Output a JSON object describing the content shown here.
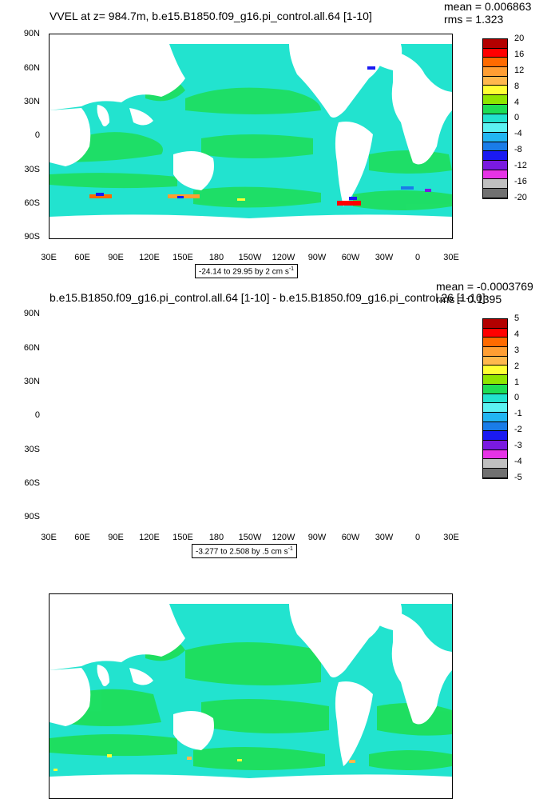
{
  "panels": [
    {
      "title": "VVEL at z= 984.7m, b.e15.B1850.f09_g16.pi_control.all.64 [1-10]",
      "stats": {
        "mean": "mean = 0.006863",
        "rms": "rms = 1.323"
      },
      "range_note": "-24.14 to 29.95 by 2 cm s",
      "range_unit_exp": "-1",
      "colorbar_labels": [
        "20",
        "16",
        "12",
        "8",
        "4",
        "0",
        "-4",
        "-8",
        "-12",
        "-16",
        "-20"
      ],
      "background_color": "#22e3cf"
    },
    {
      "title": "b.e15.B1850.f09_g16.pi_control.all.64 [1-10] - b.e15.B1850.f09_g16.pi_control.26 [1-10]",
      "stats": {
        "mean": "mean = -0.0003769",
        "rms": "rms = 0.1395"
      },
      "range_note": "-3.277 to 2.508 by .5 cm s",
      "range_unit_exp": "-1",
      "colorbar_labels": [
        "5",
        "4",
        "3",
        "2",
        "1",
        "0",
        "-1",
        "-2",
        "-3",
        "-4",
        "-5"
      ],
      "background_color": "#22e3cf"
    }
  ],
  "chart_data": [
    {
      "type": "heatmap",
      "title": "VVEL at z= 984.7m, b.e15.B1850.f09_g16.pi_control.all.64 [1-10]",
      "xlabel": "",
      "ylabel": "",
      "x_ticks": [
        "30E",
        "60E",
        "90E",
        "120E",
        "150E",
        "180",
        "150W",
        "120W",
        "90W",
        "60W",
        "30W",
        "0",
        "30E"
      ],
      "y_ticks": [
        "90N",
        "60N",
        "30N",
        "0",
        "30S",
        "60S",
        "90S"
      ],
      "x_range": [
        30,
        390
      ],
      "y_range": [
        -90,
        90
      ],
      "mean": 0.006863,
      "rms": 1.323,
      "data_min": -24.14,
      "data_max": 29.95,
      "contour_interval": 2,
      "units": "cm s-1",
      "colorbar_range": [
        -20,
        20
      ],
      "colorbar_levels": [
        -20,
        -16,
        -12,
        -8,
        -4,
        0,
        4,
        8,
        12,
        16,
        20
      ],
      "colorbar_colors": [
        "#b30000",
        "#ff0000",
        "#ff6a00",
        "#ff9e33",
        "#ffb84d",
        "#ffff33",
        "#8fe600",
        "#1ede55",
        "#22e3cf",
        "#5cf2f2",
        "#22b5f2",
        "#1a7ce8",
        "#1a1af2",
        "#7a1ae0",
        "#e633e6",
        "#c0c0c0",
        "#707070"
      ],
      "grid": false
    },
    {
      "type": "heatmap",
      "title": "b.e15.B1850.f09_g16.pi_control.all.64 [1-10] - b.e15.B1850.f09_g16.pi_control.26 [1-10]",
      "xlabel": "",
      "ylabel": "",
      "x_ticks": [
        "30E",
        "60E",
        "90E",
        "120E",
        "150E",
        "180",
        "150W",
        "120W",
        "90W",
        "60W",
        "30W",
        "0",
        "30E"
      ],
      "y_ticks": [
        "90N",
        "60N",
        "30N",
        "0",
        "30S",
        "60S",
        "90S"
      ],
      "x_range": [
        30,
        390
      ],
      "y_range": [
        -90,
        90
      ],
      "mean": -0.0003769,
      "rms": 0.1395,
      "data_min": -3.277,
      "data_max": 2.508,
      "contour_interval": 0.5,
      "units": "cm s-1",
      "colorbar_range": [
        -5,
        5
      ],
      "colorbar_levels": [
        -5,
        -4,
        -3,
        -2,
        -1,
        0,
        1,
        2,
        3,
        4,
        5
      ],
      "colorbar_colors": [
        "#b30000",
        "#ff0000",
        "#ff6a00",
        "#ff9e33",
        "#ffb84d",
        "#ffff33",
        "#8fe600",
        "#1ede55",
        "#22e3cf",
        "#5cf2f2",
        "#22b5f2",
        "#1a7ce8",
        "#1a1af2",
        "#7a1ae0",
        "#e633e6",
        "#c0c0c0",
        "#707070"
      ],
      "grid": false
    }
  ]
}
